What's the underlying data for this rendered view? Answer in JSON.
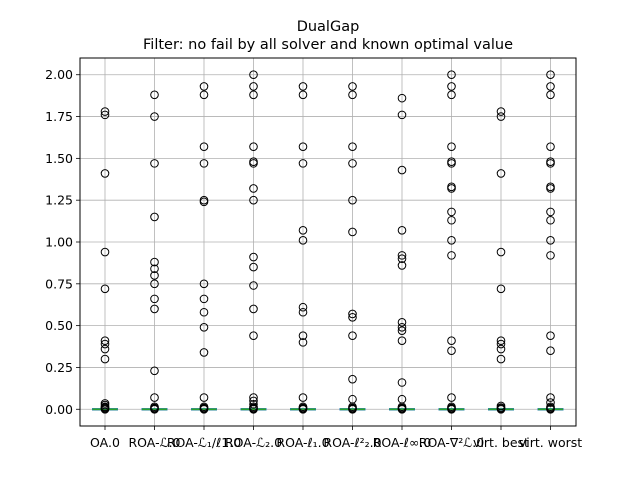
{
  "chart_data": {
    "type": "box",
    "title": "DualGap",
    "subtitle": "Filter: no fail by all solver and known optimal value",
    "xlabel": "",
    "ylabel": "",
    "ylim": [
      -0.1,
      2.1
    ],
    "yticks": [
      0.0,
      0.25,
      0.5,
      0.75,
      1.0,
      1.25,
      1.5,
      1.75,
      2.0
    ],
    "ytick_labels": [
      "0.00",
      "0.25",
      "0.50",
      "0.75",
      "1.00",
      "1.25",
      "1.50",
      "1.75",
      "2.00"
    ],
    "grid": true,
    "legend": "none",
    "colors": {
      "median": "#2ca02c",
      "box": "#1f77b4",
      "flier": "#000000",
      "grid": "#b0b0b0"
    },
    "categories": [
      "OA.0",
      "ROA-ℒ.0",
      "ROA-ℒ₁/ℓ1.0",
      "ROA-ℒ₂.0",
      "ROA-ℓ₁.0",
      "ROA-ℓ²₂.0",
      "ROA-ℓ∞.0",
      "ROA-∇²ℒ.0",
      "virt. best",
      "virt. worst"
    ],
    "series": [
      {
        "name": "OA.0",
        "median": 0.0,
        "q1": 0.0,
        "q3": 0.0,
        "outliers": [
          1.78,
          1.76,
          1.41,
          0.94,
          0.72,
          0.41,
          0.39,
          0.36,
          0.3,
          0.035,
          0.025,
          0.015,
          0.01,
          0.005
        ]
      },
      {
        "name": "ROA-ℒ.0",
        "median": 0.0,
        "q1": 0.0,
        "q3": 0.0,
        "outliers": [
          1.88,
          1.75,
          1.47,
          1.15,
          0.88,
          0.84,
          0.8,
          0.75,
          0.66,
          0.6,
          0.23,
          0.07,
          0.015,
          0.008,
          0.004
        ]
      },
      {
        "name": "ROA-ℒ₁/ℓ1.0",
        "median": 0.0,
        "q1": 0.0,
        "q3": 0.0,
        "outliers": [
          1.93,
          1.88,
          1.57,
          1.47,
          1.25,
          1.24,
          0.75,
          0.66,
          0.58,
          0.49,
          0.34,
          0.07,
          0.015,
          0.008,
          0.004
        ]
      },
      {
        "name": "ROA-ℒ₂.0",
        "median": 0.0,
        "q1": 0.0,
        "q3": 0.0,
        "outliers": [
          2.0,
          1.93,
          1.88,
          1.57,
          1.48,
          1.47,
          1.32,
          1.25,
          0.91,
          0.85,
          0.74,
          0.6,
          0.44,
          0.07,
          0.05,
          0.03,
          0.015,
          0.008,
          0.004
        ]
      },
      {
        "name": "ROA-ℓ₁.0",
        "median": 0.0,
        "q1": 0.0,
        "q3": 0.0,
        "outliers": [
          1.93,
          1.88,
          1.57,
          1.47,
          1.07,
          1.01,
          0.61,
          0.58,
          0.44,
          0.4,
          0.07,
          0.015,
          0.008,
          0.004
        ]
      },
      {
        "name": "ROA-ℓ²₂.0",
        "median": 0.0,
        "q1": 0.0,
        "q3": 0.0,
        "outliers": [
          1.93,
          1.88,
          1.57,
          1.47,
          1.25,
          1.06,
          0.57,
          0.55,
          0.44,
          0.18,
          0.06,
          0.015,
          0.008,
          0.004
        ]
      },
      {
        "name": "ROA-ℓ∞.0",
        "median": 0.0,
        "q1": 0.0,
        "q3": 0.0,
        "outliers": [
          1.86,
          1.76,
          1.43,
          1.07,
          0.92,
          0.9,
          0.86,
          0.52,
          0.49,
          0.47,
          0.41,
          0.16,
          0.06,
          0.015,
          0.008,
          0.004
        ]
      },
      {
        "name": "ROA-∇²ℒ.0",
        "median": 0.0,
        "q1": 0.0,
        "q3": 0.0,
        "outliers": [
          2.0,
          1.93,
          1.88,
          1.57,
          1.48,
          1.47,
          1.33,
          1.32,
          1.18,
          1.13,
          1.01,
          0.92,
          0.41,
          0.35,
          0.07,
          0.015,
          0.008,
          0.004
        ]
      },
      {
        "name": "virt. best",
        "median": 0.0,
        "q1": 0.0,
        "q3": 0.0,
        "outliers": [
          1.78,
          1.75,
          1.41,
          0.94,
          0.72,
          0.41,
          0.39,
          0.36,
          0.3,
          0.02,
          0.01,
          0.005
        ]
      },
      {
        "name": "virt. worst",
        "median": 0.0,
        "q1": 0.0,
        "q3": 0.0,
        "outliers": [
          2.0,
          1.93,
          1.88,
          1.57,
          1.48,
          1.47,
          1.33,
          1.32,
          1.18,
          1.13,
          1.01,
          0.92,
          0.44,
          0.35,
          0.07,
          0.04,
          0.015,
          0.008,
          0.004
        ]
      }
    ]
  }
}
